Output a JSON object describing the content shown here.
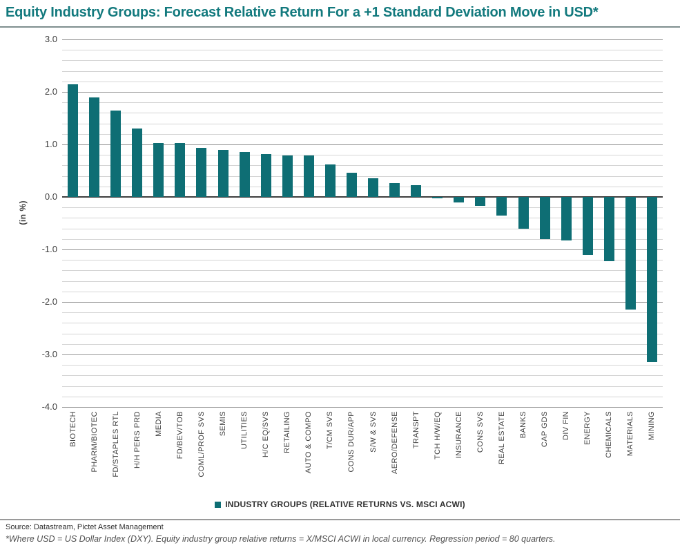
{
  "chart_data": {
    "type": "bar",
    "title": "Equity Industry Groups: Forecast Relative Return For a +1 Standard Deviation Move in USD*",
    "ylabel": "(in %)",
    "legend_label": "INDUSTRY GROUPS (RELATIVE RETURNS VS. MSCI ACWI)",
    "legend_position": "bottom-center",
    "bar_color": "#0E6E74",
    "ylim": [
      -4.0,
      3.0
    ],
    "ytick_labels": [
      "3.0",
      "2.0",
      "1.0",
      "0.0",
      "-1.0",
      "-2.0",
      "-3.0",
      "-4.0"
    ],
    "ytick_values": [
      3.0,
      2.0,
      1.0,
      0.0,
      -1.0,
      -2.0,
      -3.0,
      -4.0
    ],
    "minor_grid_step": 0.2,
    "grid": true,
    "categories": [
      "BIOTECH",
      "PHARM/BIOTEC",
      "FD/STAPLES RTL",
      "H/H PERS PRD",
      "MEDIA",
      "FD/BEV/TOB",
      "COML/PROF SVS",
      "SEMIS",
      "UTILITIES",
      "H/C EQ/SVS",
      "RETAILING",
      "AUTO & COMPO",
      "T/CM SVS",
      "CONS DUR/APP",
      "S/W & SVS",
      "AERO/DEFENSE",
      "TRANSPT",
      "TCH H/W/EQ",
      "INSURANCE",
      "CONS SVS",
      "REAL ESTATE",
      "BANKS",
      "CAP GDS",
      "DIV FIN",
      "ENERGY",
      "CHEMICALS",
      "MATERIALS",
      "MINING"
    ],
    "values": [
      2.15,
      1.9,
      1.64,
      1.3,
      1.03,
      1.02,
      0.94,
      0.89,
      0.85,
      0.81,
      0.79,
      0.79,
      0.62,
      0.46,
      0.36,
      0.26,
      0.22,
      -0.02,
      -0.1,
      -0.17,
      -0.35,
      -0.6,
      -0.8,
      -0.83,
      -1.1,
      -1.22,
      -2.15,
      -3.15
    ]
  },
  "footer": {
    "source": "Source: Datastream, Pictet Asset Management",
    "note": "*Where USD = US Dollar Index (DXY). Equity industry group relative returns = X/MSCI ACWI in local currency. Regression period = 80 quarters."
  },
  "colors": {
    "accent_teal": "#0E6E74",
    "title_teal": "#12797D",
    "grid_minor": "#D4D4D4",
    "grid_major": "#979797",
    "zero_line": "#3E3E3E"
  }
}
